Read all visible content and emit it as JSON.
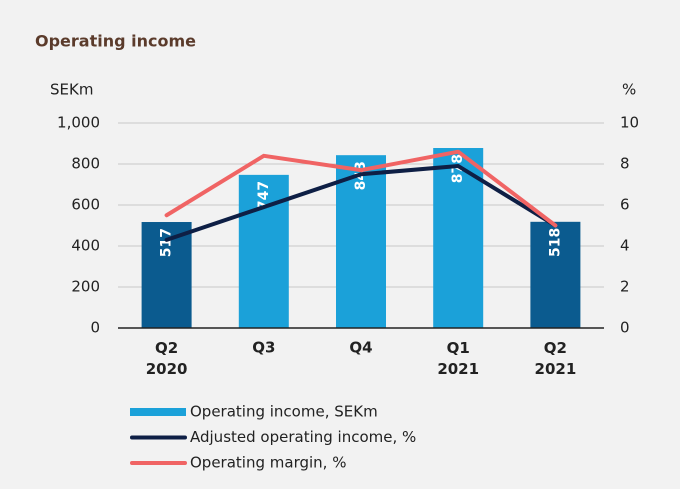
{
  "chart_data": {
    "type": "bar-line",
    "title": "Operating income",
    "y_label": "SEKm",
    "y2_label": "%",
    "categories": [
      "Q2 2020",
      "Q3",
      "Q4",
      "Q1 2021",
      "Q2 2021"
    ],
    "series": [
      {
        "name": "Operating income, SEKm",
        "type": "bar",
        "color": "#1ba1d9",
        "colors": [
          "#0b5b8f",
          "#1ba1d9",
          "#1ba1d9",
          "#1ba1d9",
          "#0b5b8f"
        ],
        "values": [
          517,
          747,
          843,
          878,
          518
        ]
      },
      {
        "name": "Adjusted operating income, %",
        "type": "line",
        "axis": "y2",
        "color": "#0e1f45",
        "values": [
          4.3,
          5.9,
          7.5,
          7.9,
          5.0
        ]
      },
      {
        "name": "Operating margin, %",
        "type": "line",
        "axis": "y2",
        "color": "#f06464",
        "values": [
          5.5,
          8.4,
          7.7,
          8.6,
          5.0
        ]
      }
    ],
    "ylim": [
      0,
      1000
    ],
    "yticks": [
      0,
      200,
      400,
      600,
      800,
      {
        "value": 1000,
        "label": "1,000"
      }
    ],
    "y2lim": [
      0,
      10
    ],
    "y2ticks": [
      0,
      2,
      4,
      6,
      8,
      10
    ],
    "grid": true
  }
}
